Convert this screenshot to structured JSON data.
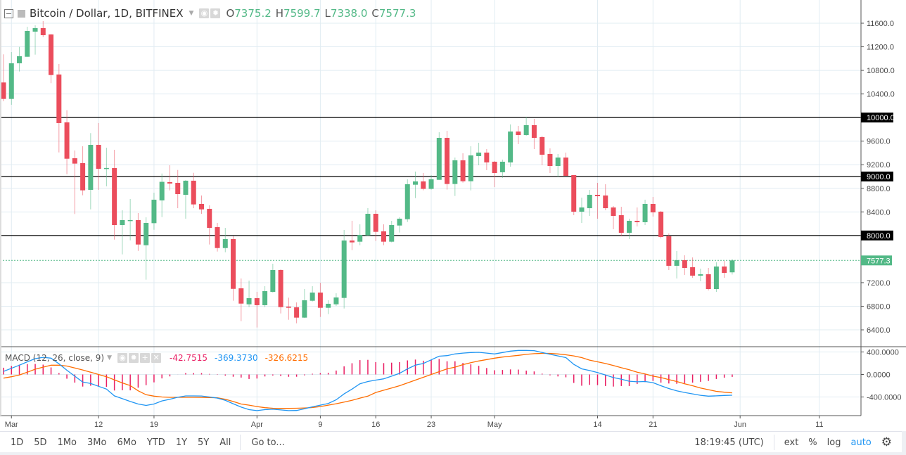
{
  "header": {
    "title": "Bitcoin / Dollar, 1D, BITFINEX",
    "ohlc": [
      {
        "key": "O",
        "value": "7375.2"
      },
      {
        "key": "H",
        "value": "7599.7"
      },
      {
        "key": "L",
        "value": "7338.0"
      },
      {
        "key": "C",
        "value": "7577.3"
      }
    ]
  },
  "macd_header": {
    "title": "MACD (12, 26, close, 9)",
    "histogram_value": "-42.7515",
    "macd_value": "-369.3730",
    "signal_value": "-326.6215"
  },
  "colors": {
    "up": "#53b987",
    "down": "#eb4d5c",
    "macd": "#2196f3",
    "signal": "#ff6d00",
    "histogram": "#e91e63",
    "level_line": "#000000",
    "grid": "#e1ecf2"
  },
  "price_axis": {
    "ticks": [
      11600,
      11200,
      10800,
      10400,
      9600,
      9200,
      8800,
      8400,
      7200,
      6800,
      6400
    ],
    "tick_labels": [
      "11600.0",
      "11200.0",
      "10800.0",
      "10400.0",
      "9600.0",
      "9200.0",
      "8800.0",
      "8400.0",
      "7200.0",
      "6800.0",
      "6400.0"
    ],
    "range": [
      6150,
      11800
    ],
    "levels": [
      {
        "price": 10000,
        "label": "10000.0"
      },
      {
        "price": 9000,
        "label": "9000.0"
      },
      {
        "price": 8000,
        "label": "8000.0"
      }
    ],
    "last_price": {
      "price": 7577.3,
      "label": "7577.3"
    }
  },
  "macd_axis": {
    "ticks": [
      400,
      0,
      -400
    ],
    "tick_labels": [
      "400.0000",
      "0.0000",
      "-400.0000"
    ]
  },
  "time_axis": {
    "labels": [
      {
        "date": "Mar 1",
        "text": "Mar"
      },
      {
        "date": "Mar 12",
        "text": "12"
      },
      {
        "date": "Mar 19",
        "text": "19"
      },
      {
        "date": "Apr 1",
        "text": "Apr"
      },
      {
        "date": "Apr 9",
        "text": "9"
      },
      {
        "date": "Apr 16",
        "text": "16"
      },
      {
        "date": "Apr 23",
        "text": "23"
      },
      {
        "date": "May 1",
        "text": "May"
      },
      {
        "date": "May 14",
        "text": "14"
      },
      {
        "date": "May 21",
        "text": "21"
      },
      {
        "date": "Jun 1",
        "text": "Jun"
      },
      {
        "date": "Jun 11",
        "text": "11"
      }
    ]
  },
  "chart_data": {
    "type": "candlestick",
    "candle_fields": [
      "date",
      "open",
      "high",
      "low",
      "close"
    ],
    "candles": [
      [
        "Feb 28",
        10595,
        11072,
        10276,
        10316
      ],
      [
        "Mar 1",
        10316,
        11111,
        10217,
        10920
      ],
      [
        "Mar 2",
        10920,
        11198,
        10781,
        11040
      ],
      [
        "Mar 3",
        11031,
        11540,
        11031,
        11469
      ],
      [
        "Mar 4",
        11457,
        11564,
        11067,
        11517
      ],
      [
        "Mar 5",
        11517,
        11636,
        11365,
        11397
      ],
      [
        "Mar 6",
        11409,
        11417,
        10583,
        10721
      ],
      [
        "Mar 7",
        10730,
        10908,
        9409,
        9907
      ],
      [
        "Mar 8",
        9918,
        10123,
        9040,
        9302
      ],
      [
        "Mar 9",
        9310,
        9441,
        8364,
        9219
      ],
      [
        "Mar 10",
        9227,
        9513,
        8682,
        8766
      ],
      [
        "Mar 11",
        8774,
        9736,
        8443,
        9537
      ],
      [
        "Mar 12",
        9537,
        9907,
        8774,
        9131
      ],
      [
        "Mar 13",
        9130,
        9489,
        8833,
        9145
      ],
      [
        "Mar 14",
        9143,
        9453,
        7930,
        8177
      ],
      [
        "Mar 15",
        8177,
        8428,
        7680,
        8261
      ],
      [
        "Mar 16",
        8250,
        8619,
        7918,
        8262
      ],
      [
        "Mar 17",
        8261,
        8380,
        7739,
        7847
      ],
      [
        "Mar 18",
        7835,
        8308,
        7251,
        8213
      ],
      [
        "Mar 19",
        8209,
        8726,
        8097,
        8607
      ],
      [
        "Mar 20",
        8595,
        9051,
        8312,
        8910
      ],
      [
        "Mar 21",
        8905,
        9191,
        8765,
        8881
      ],
      [
        "Mar 22",
        8893,
        9111,
        8463,
        8702
      ],
      [
        "Mar 23",
        8690,
        8940,
        8285,
        8929
      ],
      [
        "Mar 24",
        8929,
        9063,
        8463,
        8527
      ],
      [
        "Mar 25",
        8535,
        8678,
        8368,
        8443
      ],
      [
        "Mar 26",
        8452,
        8511,
        7847,
        8129
      ],
      [
        "Mar 27",
        8142,
        8213,
        7728,
        7787
      ],
      [
        "Mar 28",
        7787,
        8129,
        7716,
        7939
      ],
      [
        "Mar 29",
        7939,
        7990,
        6893,
        7095
      ],
      [
        "Mar 30",
        7104,
        7271,
        6547,
        6845
      ],
      [
        "Mar 31",
        6833,
        7235,
        6785,
        6937
      ],
      [
        "Apr 1",
        6937,
        7045,
        6440,
        6818
      ],
      [
        "Apr 2",
        6818,
        7140,
        6785,
        7056
      ],
      [
        "Apr 3",
        7044,
        7521,
        7032,
        7414
      ],
      [
        "Apr 4",
        7414,
        7426,
        6678,
        6785
      ],
      [
        "Apr 5",
        6794,
        6945,
        6571,
        6774
      ],
      [
        "Apr 6",
        6782,
        6865,
        6511,
        6607
      ],
      [
        "Apr 7",
        6607,
        7092,
        6600,
        6901
      ],
      [
        "Apr 8",
        6893,
        7140,
        6880,
        7032
      ],
      [
        "Apr 9",
        7032,
        7199,
        6619,
        6774
      ],
      [
        "Apr 10",
        6774,
        6901,
        6666,
        6842
      ],
      [
        "Apr 11",
        6833,
        7020,
        6806,
        6949
      ],
      [
        "Apr 12",
        6941,
        8094,
        6762,
        7915
      ],
      [
        "Apr 13",
        7915,
        8249,
        7752,
        7883
      ],
      [
        "Apr 14",
        7895,
        8189,
        7835,
        8010
      ],
      [
        "Apr 15",
        8002,
        8464,
        7990,
        8368
      ],
      [
        "Apr 16",
        8368,
        8428,
        7907,
        8062
      ],
      [
        "Apr 17",
        8070,
        8189,
        7835,
        7895
      ],
      [
        "Apr 18",
        7895,
        8249,
        7883,
        8177
      ],
      [
        "Apr 19",
        8169,
        8308,
        8050,
        8285
      ],
      [
        "Apr 20",
        8276,
        8953,
        8229,
        8869
      ],
      [
        "Apr 21",
        8861,
        9084,
        8634,
        8917
      ],
      [
        "Apr 22",
        8917,
        9060,
        8766,
        8790
      ],
      [
        "Apr 23",
        8790,
        9024,
        8778,
        8953
      ],
      [
        "Apr 24",
        8944,
        9751,
        8944,
        9656
      ],
      [
        "Apr 25",
        9656,
        9775,
        8778,
        8873
      ],
      [
        "Apr 26",
        8873,
        9322,
        8670,
        9275
      ],
      [
        "Apr 27",
        9275,
        9394,
        8897,
        8920
      ],
      [
        "Apr 28",
        8920,
        9513,
        8765,
        9358
      ],
      [
        "Apr 29",
        9346,
        9573,
        9191,
        9406
      ],
      [
        "Apr 30",
        9406,
        9465,
        9108,
        9239
      ],
      [
        "May 1",
        9251,
        9263,
        8821,
        9060
      ],
      [
        "May 2",
        9072,
        9287,
        8976,
        9251
      ],
      [
        "May 3",
        9239,
        9883,
        9167,
        9763
      ],
      [
        "May 4",
        9763,
        9859,
        9549,
        9704
      ],
      [
        "May 5",
        9704,
        10014,
        9692,
        9871
      ],
      [
        "May 6",
        9871,
        9978,
        9465,
        9656
      ],
      [
        "May 7",
        9668,
        9692,
        9191,
        9370
      ],
      [
        "May 8",
        9382,
        9477,
        9060,
        9179
      ],
      [
        "May 9",
        9179,
        9382,
        8988,
        9322
      ],
      [
        "May 10",
        9322,
        9406,
        9012,
        9012
      ],
      [
        "May 11",
        9024,
        9024,
        8344,
        8404
      ],
      [
        "May 12",
        8404,
        8642,
        8213,
        8475
      ],
      [
        "May 13",
        8463,
        8773,
        8332,
        8690
      ],
      [
        "May 14",
        8690,
        8893,
        8285,
        8666
      ],
      [
        "May 15",
        8678,
        8869,
        8428,
        8463
      ],
      [
        "May 16",
        8475,
        8499,
        8106,
        8332
      ],
      [
        "May 17",
        8344,
        8487,
        7986,
        8046
      ],
      [
        "May 18",
        8046,
        8285,
        7939,
        8249
      ],
      [
        "May 19",
        8249,
        8475,
        8153,
        8225
      ],
      [
        "May 20",
        8225,
        8607,
        8177,
        8535
      ],
      [
        "May 21",
        8535,
        8654,
        8321,
        8392
      ],
      [
        "May 22",
        8404,
        8416,
        7951,
        7975
      ],
      [
        "May 23",
        7987,
        8034,
        7414,
        7486
      ],
      [
        "May 24",
        7486,
        7736,
        7271,
        7581
      ],
      [
        "May 25",
        7581,
        7664,
        7331,
        7450
      ],
      [
        "May 26",
        7462,
        7628,
        7283,
        7319
      ],
      [
        "May 27",
        7319,
        7438,
        7223,
        7343
      ],
      [
        "May 28",
        7343,
        7450,
        7068,
        7092
      ],
      [
        "May 29",
        7092,
        7545,
        7044,
        7474
      ],
      [
        "May 30",
        7474,
        7569,
        7283,
        7366
      ],
      [
        "May 31",
        7375.2,
        7599.7,
        7338.0,
        7577.3
      ]
    ],
    "macd": {
      "params": "12, 26, close, 9",
      "macd": [
        55,
        110,
        165,
        225,
        281,
        305,
        290,
        190,
        75,
        -30,
        -135,
        -160,
        -210,
        -260,
        -380,
        -430,
        -480,
        -525,
        -550,
        -525,
        -470,
        -440,
        -405,
        -381,
        -381,
        -383,
        -400,
        -420,
        -460,
        -520,
        -580,
        -625,
        -642,
        -625,
        -618,
        -630,
        -643,
        -640,
        -610,
        -575,
        -545,
        -515,
        -450,
        -345,
        -260,
        -165,
        -125,
        -100,
        -78,
        -30,
        20,
        100,
        165,
        195,
        260,
        325,
        335,
        365,
        380,
        390,
        394,
        380,
        365,
        390,
        415,
        427,
        427,
        424,
        390,
        360,
        330,
        300,
        180,
        100,
        70,
        35,
        -10,
        -55,
        -85,
        -120,
        -130,
        -125,
        -145,
        -200,
        -250,
        -290,
        -320,
        -345,
        -370,
        -385,
        -380,
        -372,
        -369.373
      ],
      "signal": [
        -65,
        -40,
        -10,
        40,
        94,
        130,
        165,
        165,
        150,
        115,
        80,
        40,
        0,
        -40,
        -95,
        -150,
        -198,
        -290,
        -360,
        -385,
        -400,
        -406,
        -406,
        -406,
        -406,
        -408,
        -410,
        -414,
        -440,
        -480,
        -525,
        -545,
        -570,
        -590,
        -600,
        -602,
        -602,
        -600,
        -595,
        -588,
        -570,
        -545,
        -520,
        -490,
        -460,
        -420,
        -385,
        -320,
        -280,
        -240,
        -200,
        -150,
        -100,
        -50,
        0,
        50,
        100,
        130,
        175,
        210,
        240,
        265,
        290,
        310,
        325,
        340,
        358,
        370,
        375,
        375,
        365,
        350,
        330,
        300,
        255,
        225,
        195,
        160,
        120,
        85,
        40,
        10,
        -30,
        -55,
        -90,
        -125,
        -165,
        -200,
        -240,
        -270,
        -300,
        -315,
        -326.6215
      ]
    }
  },
  "toolbar": {
    "timeframes": [
      "1D",
      "5D",
      "1Mo",
      "3Mo",
      "6Mo",
      "YTD",
      "1Y",
      "5Y",
      "All"
    ],
    "goto_label": "Go to...",
    "clock": "18:19:45 (UTC)",
    "ext_label": "ext",
    "percent_label": "%",
    "log_label": "log",
    "auto_label": "auto"
  }
}
